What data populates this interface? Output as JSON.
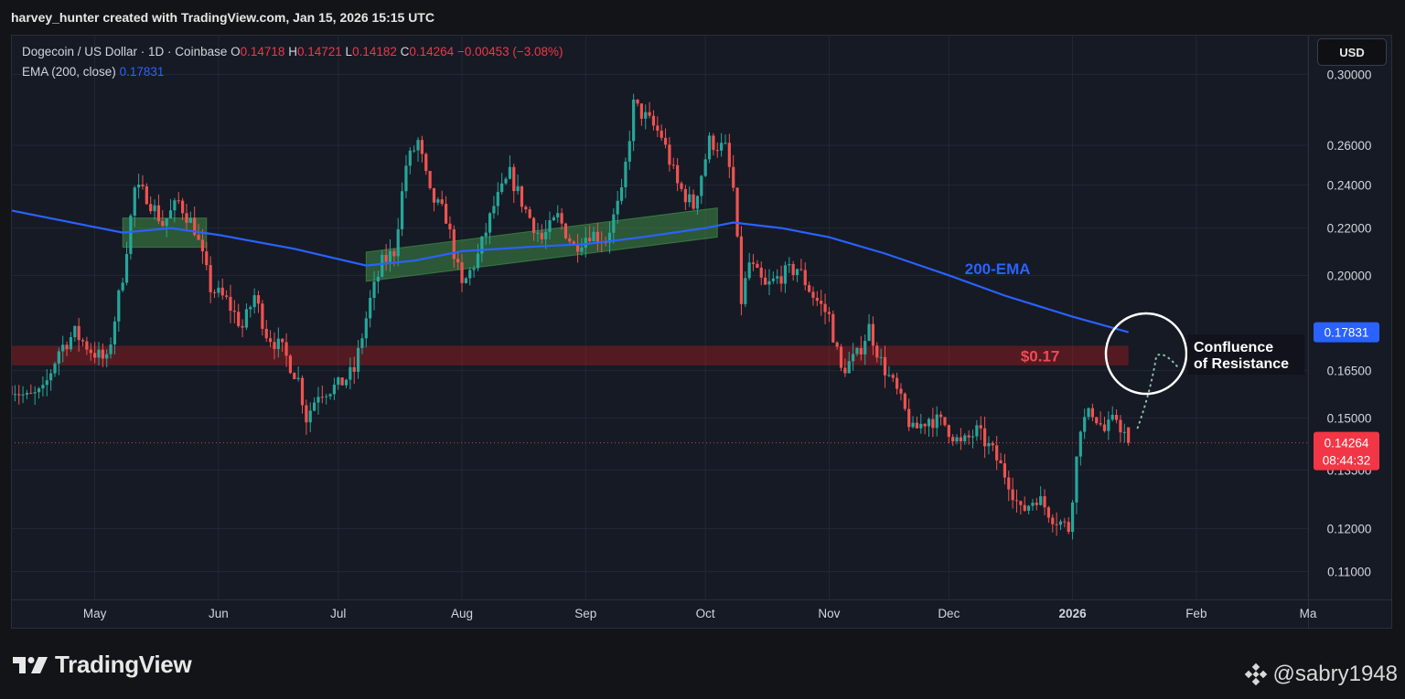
{
  "header": {
    "caption": "harvey_hunter created with TradingView.com, Jan 15, 2026 15:15 UTC"
  },
  "legend": {
    "symbol": "Dogecoin / US Dollar · 1D · Coinbase",
    "o_label": "O",
    "o_value": "0.14718",
    "h_label": "H",
    "h_value": "0.14721",
    "l_label": "L",
    "l_value": "0.14182",
    "c_label": "C",
    "c_value": "0.14264",
    "change": "−0.00453 (−3.08%)",
    "ema_label": "EMA (200, close)",
    "ema_value": "0.17831"
  },
  "currency_button": "USD",
  "colors": {
    "background": "#161a25",
    "up": "#26a69a",
    "down": "#ef5350",
    "ema": "#2962ff",
    "support_band": "#4caf50",
    "resistance_band": "#b71c1c",
    "price_badge": "#f23645"
  },
  "chart_data": {
    "type": "candlestick",
    "symbol": "DOGEUSD",
    "timeframe": "1D",
    "exchange": "Coinbase",
    "y_scale": "log",
    "ylim": [
      0.104,
      0.325
    ],
    "xlim": [
      "2025-04-10",
      "2026-03-01"
    ],
    "y_ticks": [
      "0.30000",
      "0.26000",
      "0.24000",
      "0.22000",
      "0.20000",
      "0.16500",
      "0.15000",
      "0.13500",
      "0.12000",
      "0.11000"
    ],
    "x_ticks": [
      {
        "label": "May",
        "date": "2025-05-01"
      },
      {
        "label": "Jun",
        "date": "2025-06-01"
      },
      {
        "label": "Jul",
        "date": "2025-07-01"
      },
      {
        "label": "Aug",
        "date": "2025-08-01"
      },
      {
        "label": "Sep",
        "date": "2025-09-01"
      },
      {
        "label": "Oct",
        "date": "2025-10-01"
      },
      {
        "label": "Nov",
        "date": "2025-11-01"
      },
      {
        "label": "Dec",
        "date": "2025-12-01"
      },
      {
        "label": "2026",
        "date": "2026-01-01"
      },
      {
        "label": "Feb",
        "date": "2026-02-01"
      },
      {
        "label": "Ma",
        "date": "2026-03-01"
      }
    ],
    "close_series": [
      [
        "2025-04-10",
        0.16
      ],
      [
        "2025-04-14",
        0.156
      ],
      [
        "2025-04-18",
        0.158
      ],
      [
        "2025-04-22",
        0.172
      ],
      [
        "2025-04-26",
        0.178
      ],
      [
        "2025-04-30",
        0.172
      ],
      [
        "2025-05-04",
        0.168
      ],
      [
        "2025-05-08",
        0.2
      ],
      [
        "2025-05-11",
        0.238
      ],
      [
        "2025-05-14",
        0.235
      ],
      [
        "2025-05-18",
        0.222
      ],
      [
        "2025-05-22",
        0.232
      ],
      [
        "2025-05-26",
        0.22
      ],
      [
        "2025-05-30",
        0.195
      ],
      [
        "2025-06-03",
        0.19
      ],
      [
        "2025-06-07",
        0.18
      ],
      [
        "2025-06-10",
        0.192
      ],
      [
        "2025-06-13",
        0.178
      ],
      [
        "2025-06-17",
        0.172
      ],
      [
        "2025-06-21",
        0.162
      ],
      [
        "2025-06-23",
        0.15
      ],
      [
        "2025-06-26",
        0.158
      ],
      [
        "2025-07-01",
        0.16
      ],
      [
        "2025-07-05",
        0.165
      ],
      [
        "2025-07-09",
        0.19
      ],
      [
        "2025-07-12",
        0.205
      ],
      [
        "2025-07-15",
        0.21
      ],
      [
        "2025-07-18",
        0.25
      ],
      [
        "2025-07-21",
        0.262
      ],
      [
        "2025-07-24",
        0.235
      ],
      [
        "2025-07-28",
        0.225
      ],
      [
        "2025-08-01",
        0.195
      ],
      [
        "2025-08-05",
        0.208
      ],
      [
        "2025-08-09",
        0.23
      ],
      [
        "2025-08-13",
        0.245
      ],
      [
        "2025-08-17",
        0.228
      ],
      [
        "2025-08-21",
        0.215
      ],
      [
        "2025-08-25",
        0.225
      ],
      [
        "2025-08-29",
        0.212
      ],
      [
        "2025-09-02",
        0.218
      ],
      [
        "2025-09-06",
        0.215
      ],
      [
        "2025-09-10",
        0.235
      ],
      [
        "2025-09-13",
        0.282
      ],
      [
        "2025-09-16",
        0.275
      ],
      [
        "2025-09-20",
        0.265
      ],
      [
        "2025-09-24",
        0.24
      ],
      [
        "2025-09-28",
        0.23
      ],
      [
        "2025-10-02",
        0.262
      ],
      [
        "2025-10-06",
        0.258
      ],
      [
        "2025-10-08",
        0.238
      ],
      [
        "2025-10-10",
        0.19
      ],
      [
        "2025-10-12",
        0.205
      ],
      [
        "2025-10-16",
        0.195
      ],
      [
        "2025-10-20",
        0.2
      ],
      [
        "2025-10-24",
        0.203
      ],
      [
        "2025-10-28",
        0.192
      ],
      [
        "2025-11-01",
        0.184
      ],
      [
        "2025-11-04",
        0.165
      ],
      [
        "2025-11-08",
        0.17
      ],
      [
        "2025-11-11",
        0.18
      ],
      [
        "2025-11-14",
        0.168
      ],
      [
        "2025-11-18",
        0.158
      ],
      [
        "2025-11-22",
        0.146
      ],
      [
        "2025-11-26",
        0.15
      ],
      [
        "2025-11-30",
        0.148
      ],
      [
        "2025-12-04",
        0.142
      ],
      [
        "2025-12-08",
        0.146
      ],
      [
        "2025-12-12",
        0.14
      ],
      [
        "2025-12-16",
        0.132
      ],
      [
        "2025-12-19",
        0.124
      ],
      [
        "2025-12-23",
        0.128
      ],
      [
        "2025-12-27",
        0.123
      ],
      [
        "2025-12-31",
        0.12
      ],
      [
        "2026-01-03",
        0.148
      ],
      [
        "2026-01-06",
        0.152
      ],
      [
        "2026-01-09",
        0.146
      ],
      [
        "2026-01-12",
        0.15
      ],
      [
        "2026-01-15",
        0.14264
      ]
    ],
    "ema200": {
      "name": "EMA (200, close)",
      "current": 0.17831,
      "points": [
        [
          "2025-04-10",
          0.228
        ],
        [
          "2025-05-08",
          0.218
        ],
        [
          "2025-05-20",
          0.22
        ],
        [
          "2025-06-01",
          0.217
        ],
        [
          "2025-06-20",
          0.211
        ],
        [
          "2025-07-08",
          0.204
        ],
        [
          "2025-07-20",
          0.206
        ],
        [
          "2025-08-01",
          0.21
        ],
        [
          "2025-08-20",
          0.212
        ],
        [
          "2025-09-01",
          0.213
        ],
        [
          "2025-09-15",
          0.216
        ],
        [
          "2025-10-01",
          0.22
        ],
        [
          "2025-10-08",
          0.2225
        ],
        [
          "2025-10-20",
          0.22
        ],
        [
          "2025-11-01",
          0.216
        ],
        [
          "2025-11-15",
          0.209
        ],
        [
          "2025-12-01",
          0.2
        ],
        [
          "2025-12-15",
          0.192
        ],
        [
          "2026-01-01",
          0.184
        ],
        [
          "2026-01-15",
          0.17831
        ]
      ]
    },
    "last_price": "0.14264",
    "countdown": "08:44:32",
    "ema_price_label": "0.17831",
    "annotations": {
      "ema_label": "200-EMA",
      "level_label": "$0.17",
      "level_price": 0.17,
      "resistance_label_line1": "Confluence",
      "resistance_label_line2": "of Resistance",
      "support_zones": [
        {
          "from": "2025-05-08",
          "to": "2025-05-29",
          "price": 0.218
        },
        {
          "from": "2025-07-08",
          "to": "2025-10-04",
          "price_start": 0.2035,
          "price_end": 0.2225
        }
      ],
      "projection_path": [
        [
          "2026-01-15",
          0.147
        ],
        [
          "2026-01-22",
          0.17
        ],
        [
          "2026-01-26",
          0.168
        ]
      ]
    }
  },
  "footer": {
    "brand": "TradingView",
    "handle": "@sabry1948"
  }
}
